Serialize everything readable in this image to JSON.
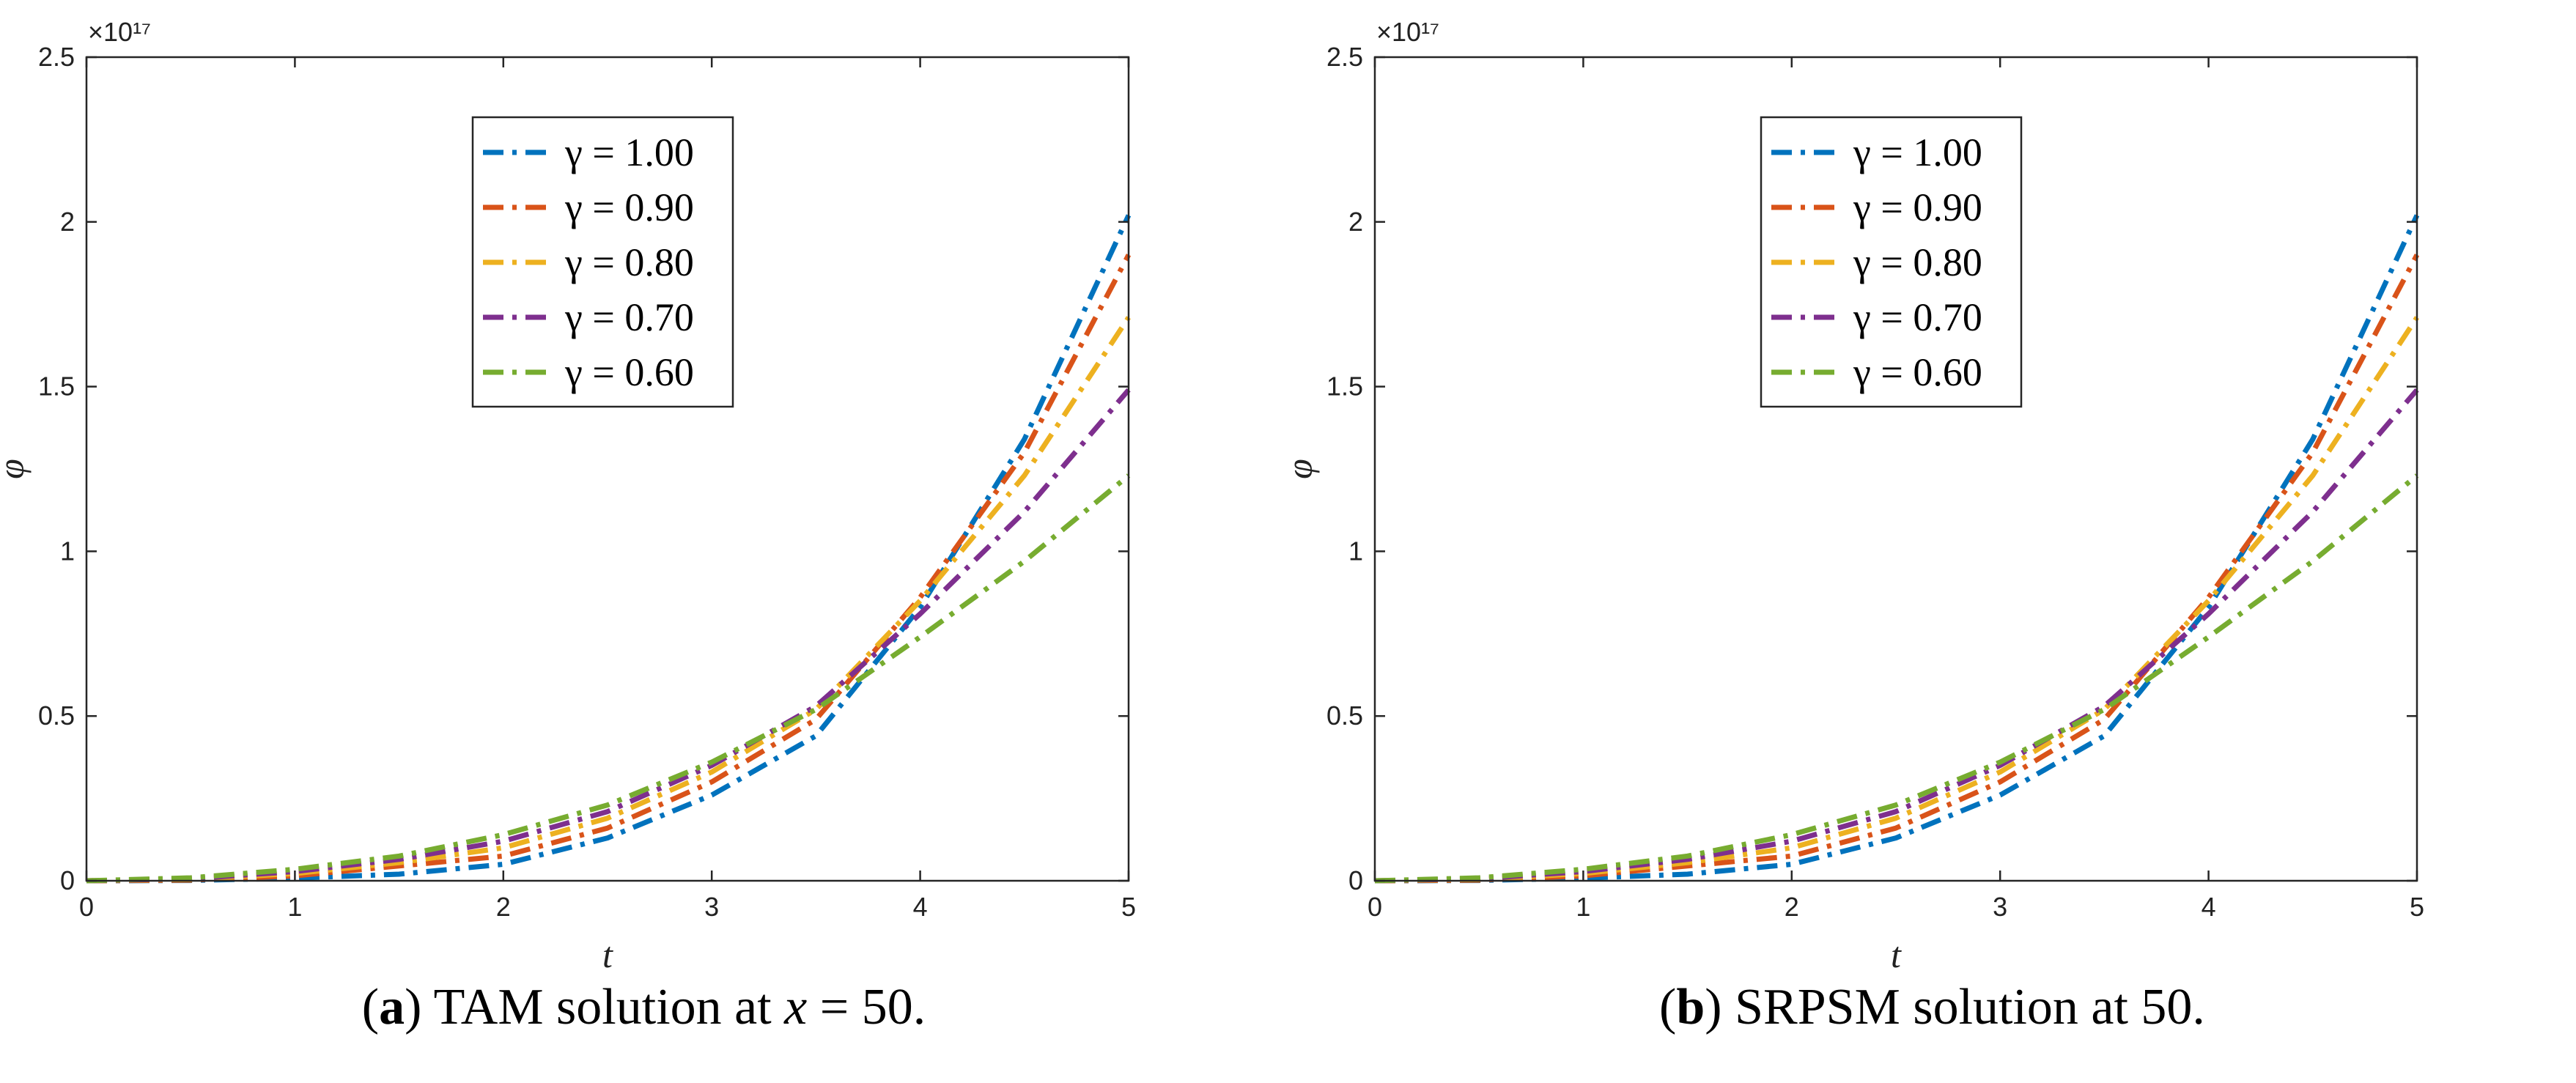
{
  "chart_data": [
    {
      "type": "line",
      "panel_label": "(a)",
      "caption": {
        "label": "a",
        "text_before": " TAM solution at ",
        "math": "x",
        "text_after": " = 50."
      },
      "title": "",
      "xlabel": "t",
      "ylabel": "φ",
      "exponent_label": "×10¹⁷",
      "xlim": [
        0,
        5
      ],
      "ylim": [
        0,
        2.5
      ],
      "xticks": [
        "0",
        "1",
        "2",
        "3",
        "4",
        "5"
      ],
      "yticks": [
        "0",
        "0.5",
        "1",
        "1.5",
        "2",
        "2.5"
      ],
      "legend_position": "top-center",
      "x": [
        0,
        0.5,
        1,
        1.5,
        2,
        2.5,
        3,
        3.5,
        4,
        4.5,
        5
      ],
      "series": [
        {
          "name": "γ = 1.00",
          "color": "#0072BD",
          "values": [
            0,
            0.001,
            0.008,
            0.02,
            0.05,
            0.13,
            0.26,
            0.44,
            0.83,
            1.34,
            2.02
          ]
        },
        {
          "name": "γ = 0.90",
          "color": "#D95319",
          "values": [
            0,
            0.002,
            0.015,
            0.045,
            0.075,
            0.16,
            0.3,
            0.49,
            0.86,
            1.3,
            1.9
          ]
        },
        {
          "name": "γ = 0.80",
          "color": "#EDB120",
          "values": [
            0,
            0.004,
            0.022,
            0.055,
            0.1,
            0.19,
            0.33,
            0.52,
            0.85,
            1.23,
            1.71
          ]
        },
        {
          "name": "γ = 0.70",
          "color": "#7E2F8E",
          "values": [
            0,
            0.006,
            0.028,
            0.065,
            0.12,
            0.21,
            0.35,
            0.53,
            0.81,
            1.12,
            1.49
          ]
        },
        {
          "name": "γ = 0.60",
          "color": "#77AC30",
          "values": [
            0,
            0.009,
            0.035,
            0.075,
            0.14,
            0.23,
            0.36,
            0.52,
            0.74,
            0.97,
            1.23
          ]
        }
      ]
    },
    {
      "type": "line",
      "panel_label": "(b)",
      "caption": {
        "label": "b",
        "text_before": " SRPSM solution at 50.",
        "math": "",
        "text_after": ""
      },
      "title": "",
      "xlabel": "t",
      "ylabel": "φ",
      "exponent_label": "×10¹⁷",
      "xlim": [
        0,
        5
      ],
      "ylim": [
        0,
        2.5
      ],
      "xticks": [
        "0",
        "1",
        "2",
        "3",
        "4",
        "5"
      ],
      "yticks": [
        "0",
        "0.5",
        "1",
        "1.5",
        "2",
        "2.5"
      ],
      "legend_position": "top-center",
      "x": [
        0,
        0.5,
        1,
        1.5,
        2,
        2.5,
        3,
        3.5,
        4,
        4.5,
        5
      ],
      "series": [
        {
          "name": "γ = 1.00",
          "color": "#0072BD",
          "values": [
            0,
            0.001,
            0.008,
            0.02,
            0.05,
            0.13,
            0.26,
            0.44,
            0.83,
            1.34,
            2.02
          ]
        },
        {
          "name": "γ = 0.90",
          "color": "#D95319",
          "values": [
            0,
            0.002,
            0.015,
            0.045,
            0.075,
            0.16,
            0.3,
            0.49,
            0.86,
            1.3,
            1.9
          ]
        },
        {
          "name": "γ = 0.80",
          "color": "#EDB120",
          "values": [
            0,
            0.004,
            0.022,
            0.055,
            0.1,
            0.19,
            0.33,
            0.52,
            0.85,
            1.23,
            1.71
          ]
        },
        {
          "name": "γ = 0.70",
          "color": "#7E2F8E",
          "values": [
            0,
            0.006,
            0.028,
            0.065,
            0.12,
            0.21,
            0.35,
            0.53,
            0.81,
            1.12,
            1.49
          ]
        },
        {
          "name": "γ = 0.60",
          "color": "#77AC30",
          "values": [
            0,
            0.009,
            0.035,
            0.075,
            0.14,
            0.23,
            0.36,
            0.52,
            0.74,
            0.97,
            1.23
          ]
        }
      ]
    }
  ]
}
